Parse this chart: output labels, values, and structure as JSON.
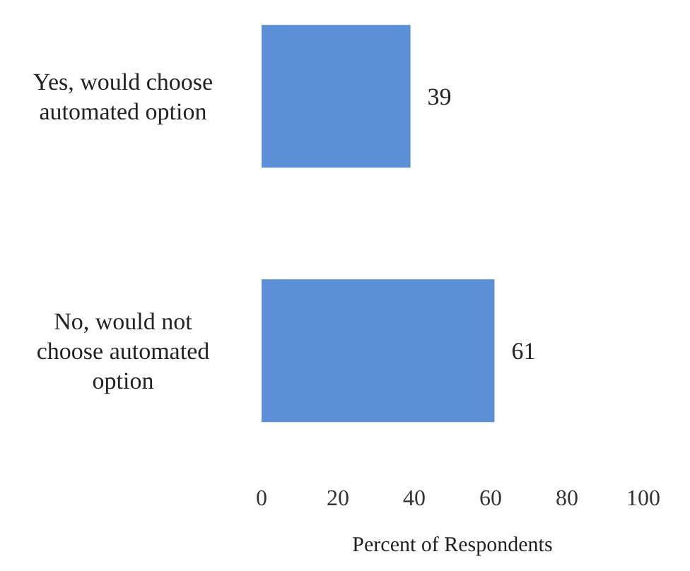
{
  "chart_data": {
    "type": "bar",
    "orientation": "horizontal",
    "categories": [
      "Yes, would choose automated option",
      "No, would not choose automated option"
    ],
    "values": [
      39,
      61
    ],
    "color": "#5b8fd6",
    "xlim": [
      0,
      100
    ],
    "xticks": [
      0,
      20,
      40,
      60,
      80,
      100
    ],
    "xlabel": "Percent of Respondents",
    "data_labels": true,
    "grid": false,
    "legend": false
  }
}
